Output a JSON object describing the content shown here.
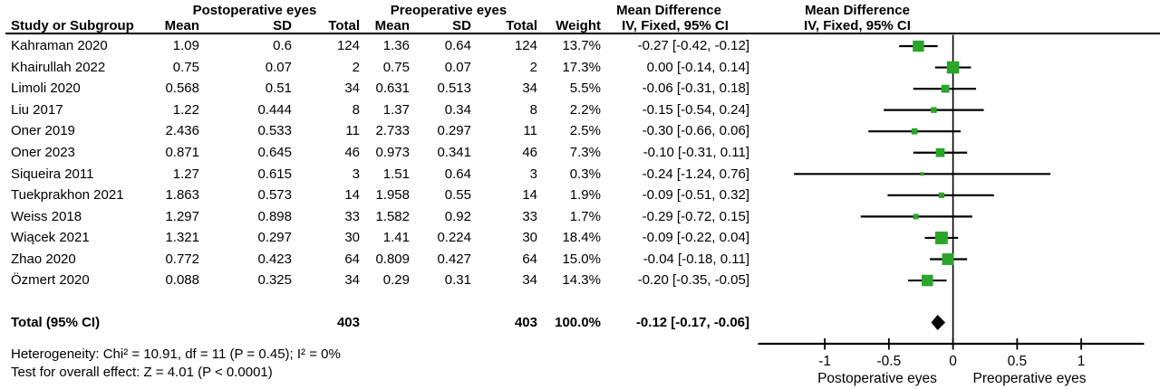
{
  "header": {
    "group_post": "Postoperative eyes",
    "group_pre": "Preoperative eyes",
    "group_md_text": "Mean Difference",
    "group_md_plot": "Mean Difference",
    "col_study": "Study or Subgroup",
    "col_mean1": "Mean",
    "col_sd1": "SD",
    "col_total1": "Total",
    "col_mean2": "Mean",
    "col_sd2": "SD",
    "col_total2": "Total",
    "col_weight": "Weight",
    "col_ci": "IV, Fixed, 95% CI",
    "col_ci_plot": "IV, Fixed, 95% CI"
  },
  "table": {
    "rows": [
      {
        "study": "Kahraman 2020",
        "mean1": "1.09",
        "sd1": "0.6",
        "total1": "124",
        "mean2": "1.36",
        "sd2": "0.64",
        "total2": "124",
        "weight": "13.7%",
        "ci": "-0.27 [-0.42, -0.12]"
      },
      {
        "study": "Khairullah 2022",
        "mean1": "0.75",
        "sd1": "0.07",
        "total1": "2",
        "mean2": "0.75",
        "sd2": "0.07",
        "total2": "2",
        "weight": "17.3%",
        "ci": "0.00 [-0.14, 0.14]"
      },
      {
        "study": "Limoli 2020",
        "mean1": "0.568",
        "sd1": "0.51",
        "total1": "34",
        "mean2": "0.631",
        "sd2": "0.513",
        "total2": "34",
        "weight": "5.5%",
        "ci": "-0.06 [-0.31, 0.18]"
      },
      {
        "study": "Liu 2017",
        "mean1": "1.22",
        "sd1": "0.444",
        "total1": "8",
        "mean2": "1.37",
        "sd2": "0.34",
        "total2": "8",
        "weight": "2.2%",
        "ci": "-0.15 [-0.54, 0.24]"
      },
      {
        "study": "Oner 2019",
        "mean1": "2.436",
        "sd1": "0.533",
        "total1": "11",
        "mean2": "2.733",
        "sd2": "0.297",
        "total2": "11",
        "weight": "2.5%",
        "ci": "-0.30 [-0.66, 0.06]"
      },
      {
        "study": "Oner 2023",
        "mean1": "0.871",
        "sd1": "0.645",
        "total1": "46",
        "mean2": "0.973",
        "sd2": "0.341",
        "total2": "46",
        "weight": "7.3%",
        "ci": "-0.10 [-0.31, 0.11]"
      },
      {
        "study": "Siqueira 2011",
        "mean1": "1.27",
        "sd1": "0.615",
        "total1": "3",
        "mean2": "1.51",
        "sd2": "0.64",
        "total2": "3",
        "weight": "0.3%",
        "ci": "-0.24 [-1.24, 0.76]"
      },
      {
        "study": "Tuekprakhon 2021",
        "mean1": "1.863",
        "sd1": "0.573",
        "total1": "14",
        "mean2": "1.958",
        "sd2": "0.55",
        "total2": "14",
        "weight": "1.9%",
        "ci": "-0.09 [-0.51, 0.32]"
      },
      {
        "study": "Weiss 2018",
        "mean1": "1.297",
        "sd1": "0.898",
        "total1": "33",
        "mean2": "1.582",
        "sd2": "0.92",
        "total2": "33",
        "weight": "1.7%",
        "ci": "-0.29 [-0.72, 0.15]"
      },
      {
        "study": "Wiącek 2021",
        "mean1": "1.321",
        "sd1": "0.297",
        "total1": "30",
        "mean2": "1.41",
        "sd2": "0.224",
        "total2": "30",
        "weight": "18.4%",
        "ci": "-0.09 [-0.22, 0.04]"
      },
      {
        "study": "Zhao 2020",
        "mean1": "0.772",
        "sd1": "0.423",
        "total1": "64",
        "mean2": "0.809",
        "sd2": "0.427",
        "total2": "64",
        "weight": "15.0%",
        "ci": "-0.04 [-0.18, 0.11]"
      },
      {
        "study": "Özmert 2020",
        "mean1": "0.088",
        "sd1": "0.325",
        "total1": "34",
        "mean2": "0.29",
        "sd2": "0.31",
        "total2": "34",
        "weight": "14.3%",
        "ci": "-0.20 [-0.35, -0.05]"
      }
    ]
  },
  "totals": {
    "label": "Total (95% CI)",
    "total1": "403",
    "total2": "403",
    "weight": "100.0%",
    "ci": "-0.12 [-0.17, -0.06]"
  },
  "footer": {
    "heterogeneity": "Heterogeneity: Chi² = 10.91, df = 11 (P = 0.45); I² = 0%",
    "overall_effect": "Test for overall effect: Z = 4.01 (P < 0.0001)"
  },
  "chart_data": {
    "type": "forest",
    "effect_measure": "Mean Difference",
    "method": "IV, Fixed, 95% CI",
    "x_axis": {
      "ticks": [
        -1,
        -0.5,
        0,
        0.5,
        1
      ],
      "tick_labels": [
        "-1",
        "-0.5",
        "0",
        "0.5",
        "1"
      ],
      "min": -1.52,
      "max": 1.49,
      "left_label": "Postoperative eyes",
      "right_label": "Preoperative eyes"
    },
    "studies": [
      {
        "study": "Kahraman 2020",
        "md": -0.27,
        "ci_low": -0.42,
        "ci_high": -0.12,
        "weight_pct": 13.7
      },
      {
        "study": "Khairullah 2022",
        "md": 0.0,
        "ci_low": -0.14,
        "ci_high": 0.14,
        "weight_pct": 17.3
      },
      {
        "study": "Limoli 2020",
        "md": -0.06,
        "ci_low": -0.31,
        "ci_high": 0.18,
        "weight_pct": 5.5
      },
      {
        "study": "Liu 2017",
        "md": -0.15,
        "ci_low": -0.54,
        "ci_high": 0.24,
        "weight_pct": 2.2
      },
      {
        "study": "Oner 2019",
        "md": -0.3,
        "ci_low": -0.66,
        "ci_high": 0.06,
        "weight_pct": 2.5
      },
      {
        "study": "Oner 2023",
        "md": -0.1,
        "ci_low": -0.31,
        "ci_high": 0.11,
        "weight_pct": 7.3
      },
      {
        "study": "Siqueira 2011",
        "md": -0.24,
        "ci_low": -1.24,
        "ci_high": 0.76,
        "weight_pct": 0.3
      },
      {
        "study": "Tuekprakhon 2021",
        "md": -0.09,
        "ci_low": -0.51,
        "ci_high": 0.32,
        "weight_pct": 1.9
      },
      {
        "study": "Weiss 2018",
        "md": -0.29,
        "ci_low": -0.72,
        "ci_high": 0.15,
        "weight_pct": 1.7
      },
      {
        "study": "Wiącek 2021",
        "md": -0.09,
        "ci_low": -0.22,
        "ci_high": 0.04,
        "weight_pct": 18.4
      },
      {
        "study": "Zhao 2020",
        "md": -0.04,
        "ci_low": -0.18,
        "ci_high": 0.11,
        "weight_pct": 15.0
      },
      {
        "study": "Özmert 2020",
        "md": -0.2,
        "ci_low": -0.35,
        "ci_high": -0.05,
        "weight_pct": 14.3
      }
    ],
    "total": {
      "md": -0.12,
      "ci_low": -0.17,
      "ci_high": -0.06
    },
    "colors": {
      "marker": "#2aa52a",
      "line": "#000000",
      "diamond": "#000000"
    }
  }
}
